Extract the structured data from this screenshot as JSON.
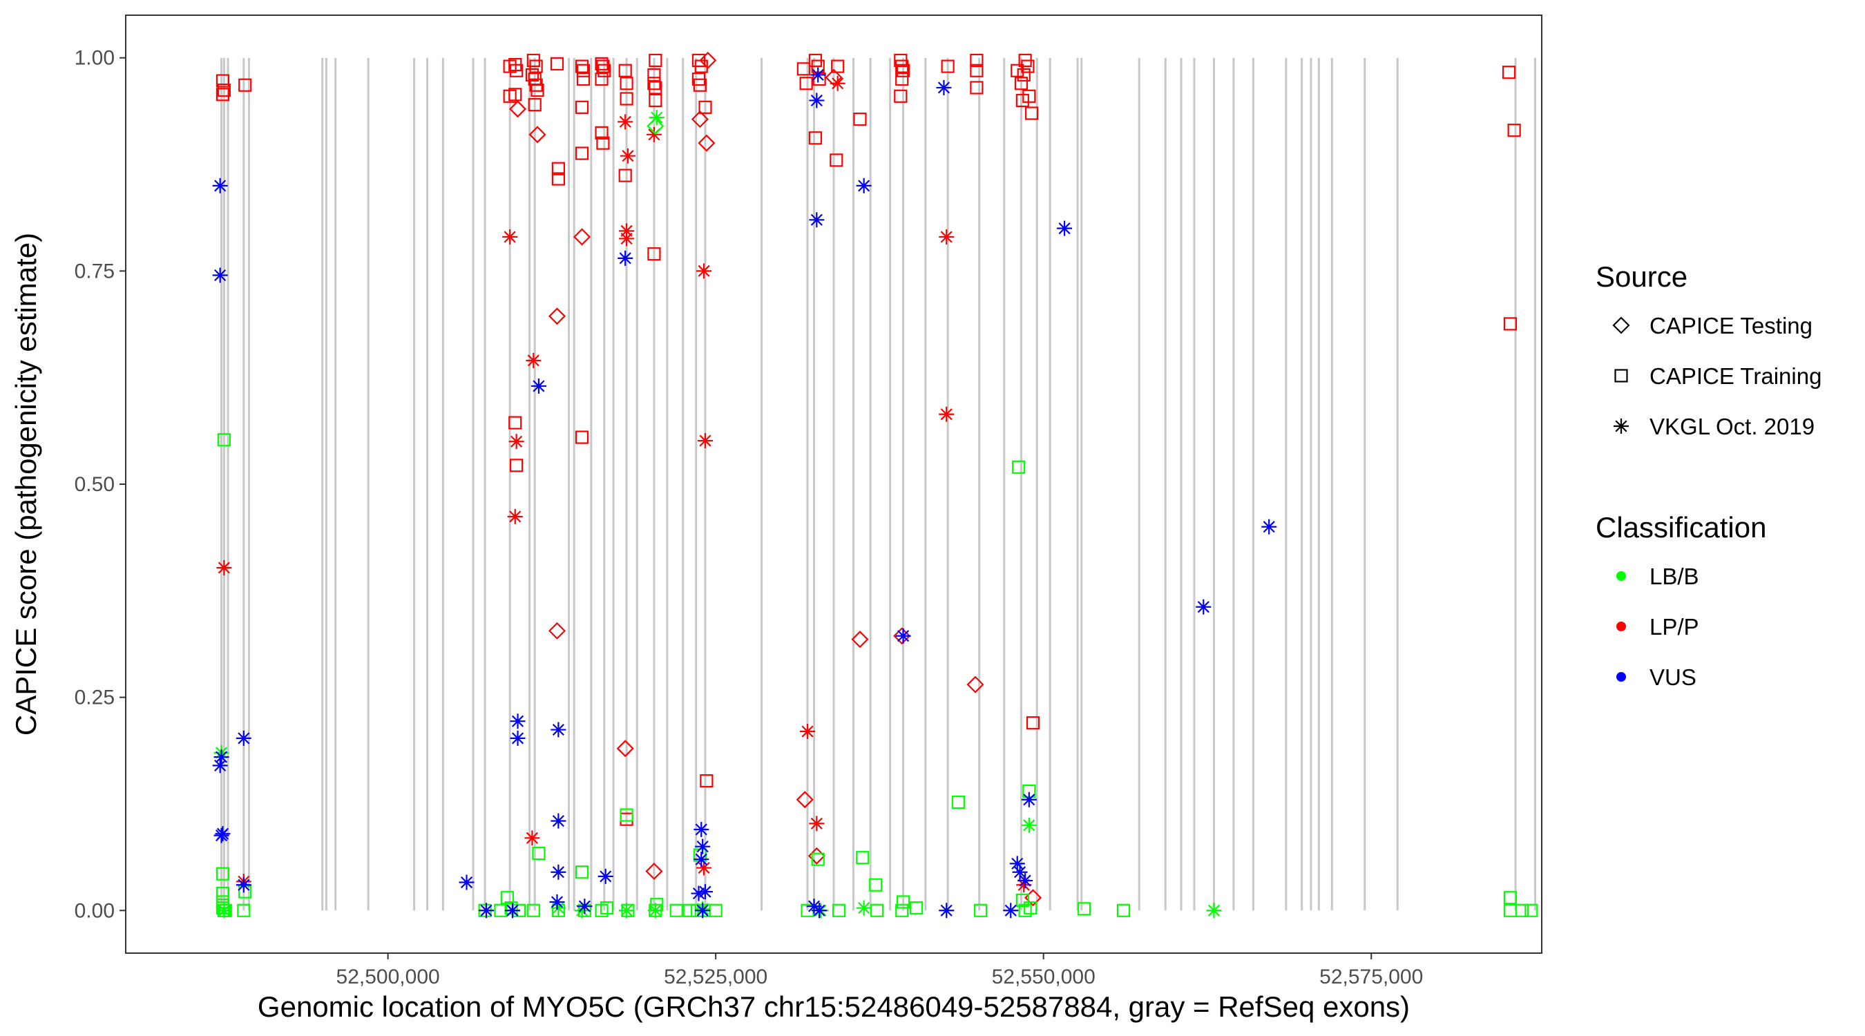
{
  "chart_data": {
    "type": "scatter",
    "xlabel": "Genomic location of MYO5C (GRCh37 chr15:52486049-52587884, gray = RefSeq exons)",
    "ylabel": "CAPICE score (pathogenicity estimate)",
    "x_ticks": [
      52500000,
      52525000,
      52550000,
      52575000
    ],
    "x_tick_labels": [
      "52,500,000",
      "52,525,000",
      "52,550,000",
      "52,575,000"
    ],
    "y_ticks": [
      0,
      0.25,
      0.5,
      0.75,
      1
    ],
    "y_tick_labels": [
      "0.00",
      "0.25",
      "0.50",
      "0.75",
      "1.00"
    ],
    "xlim": [
      52480000,
      52588000
    ],
    "ylim": [
      -0.05,
      1.05
    ],
    "grid": false,
    "legend_position": "right",
    "exons": [
      52487300,
      52487500,
      52487800,
      52489000,
      52489400,
      52495000,
      52495300,
      52496000,
      52498500,
      52502000,
      52503000,
      52504200,
      52506500,
      52507400,
      52509300,
      52510800,
      52511200,
      52513800,
      52514200,
      52515500,
      52516500,
      52517200,
      52518200,
      52519000,
      52520300,
      52521300,
      52522500,
      52523500,
      52524200,
      52528500,
      52532000,
      52532500,
      52534000,
      52535500,
      52536800,
      52538300,
      52539300,
      52541000,
      52542700,
      52545100,
      52547000,
      52548300,
      52549500,
      52550500,
      52552600,
      52552900,
      52557300,
      52559300,
      52560500,
      52561500,
      52563000,
      52564500,
      52566000,
      52568500,
      52569700,
      52570400,
      52571000,
      52572000,
      52574500,
      52577000,
      52586000,
      52587500
    ],
    "legend": {
      "source_title": "Source",
      "classification_title": "Classification",
      "sources": [
        {
          "key": "testing",
          "label": "CAPICE Testing",
          "shape": "diamond"
        },
        {
          "key": "training",
          "label": "CAPICE Training",
          "shape": "square"
        },
        {
          "key": "vkgl",
          "label": "VKGL Oct. 2019",
          "shape": "asterisk"
        }
      ],
      "classes": [
        {
          "key": "LB/B",
          "label": "LB/B",
          "color": "#00ff00"
        },
        {
          "key": "LP/P",
          "label": "LP/P",
          "color": "#ff0000"
        },
        {
          "key": "VUS",
          "label": "VUS",
          "color": "#0000ff"
        }
      ]
    },
    "series": [
      {
        "class": "LP/P",
        "source": "training",
        "points": [
          [
            52487400,
            0.973
          ],
          [
            52487400,
            0.957
          ],
          [
            52487500,
            0.962
          ],
          [
            52489100,
            0.968
          ],
          [
            52509300,
            0.99
          ],
          [
            52509300,
            0.955
          ],
          [
            52509700,
            0.992
          ],
          [
            52509800,
            0.985
          ],
          [
            52509700,
            0.957
          ],
          [
            52509700,
            0.572
          ],
          [
            52509800,
            0.522
          ],
          [
            52511100,
            0.997
          ],
          [
            52511300,
            0.99
          ],
          [
            52511000,
            0.98
          ],
          [
            52511200,
            0.975
          ],
          [
            52511300,
            0.968
          ],
          [
            52511400,
            0.962
          ],
          [
            52511200,
            0.945
          ],
          [
            52512900,
            0.993
          ],
          [
            52513000,
            0.87
          ],
          [
            52513000,
            0.858
          ],
          [
            52514800,
            0.99
          ],
          [
            52514900,
            0.985
          ],
          [
            52514900,
            0.975
          ],
          [
            52514800,
            0.942
          ],
          [
            52514800,
            0.888
          ],
          [
            52514800,
            0.555
          ],
          [
            52516300,
            0.993
          ],
          [
            52516400,
            0.99
          ],
          [
            52516500,
            0.985
          ],
          [
            52516300,
            0.975
          ],
          [
            52516300,
            0.912
          ],
          [
            52516400,
            0.9
          ],
          [
            52518100,
            0.985
          ],
          [
            52518200,
            0.97
          ],
          [
            52518200,
            0.952
          ],
          [
            52518100,
            0.862
          ],
          [
            52518200,
            0.107
          ],
          [
            52520400,
            0.997
          ],
          [
            52520300,
            0.98
          ],
          [
            52520300,
            0.97
          ],
          [
            52520400,
            0.965
          ],
          [
            52520400,
            0.95
          ],
          [
            52520300,
            0.77
          ],
          [
            52523700,
            0.997
          ],
          [
            52523900,
            0.99
          ],
          [
            52523700,
            0.975
          ],
          [
            52523800,
            0.968
          ],
          [
            52524200,
            0.942
          ],
          [
            52524300,
            0.152
          ],
          [
            52531700,
            0.987
          ],
          [
            52531900,
            0.97
          ],
          [
            52532600,
            0.997
          ],
          [
            52532800,
            0.99
          ],
          [
            52532900,
            0.975
          ],
          [
            52532600,
            0.906
          ],
          [
            52534300,
            0.99
          ],
          [
            52534200,
            0.88
          ],
          [
            52536000,
            0.928
          ],
          [
            52539100,
            0.997
          ],
          [
            52539200,
            0.99
          ],
          [
            52539300,
            0.985
          ],
          [
            52539200,
            0.975
          ],
          [
            52539100,
            0.955
          ],
          [
            52542700,
            0.99
          ],
          [
            52544900,
            0.997
          ],
          [
            52544900,
            0.985
          ],
          [
            52544900,
            0.965
          ],
          [
            52548000,
            0.985
          ],
          [
            52548600,
            0.997
          ],
          [
            52548800,
            0.99
          ],
          [
            52548500,
            0.98
          ],
          [
            52548300,
            0.97
          ],
          [
            52548900,
            0.955
          ],
          [
            52548400,
            0.95
          ],
          [
            52549100,
            0.935
          ],
          [
            52549200,
            0.22
          ],
          [
            52585500,
            0.983
          ],
          [
            52585900,
            0.915
          ],
          [
            52585600,
            0.688
          ]
        ]
      },
      {
        "class": "LP/P",
        "source": "testing",
        "points": [
          [
            52509900,
            0.94
          ],
          [
            52511400,
            0.91
          ],
          [
            52512900,
            0.697
          ],
          [
            52512900,
            0.328
          ],
          [
            52514800,
            0.79
          ],
          [
            52518100,
            0.19
          ],
          [
            52520300,
            0.046
          ],
          [
            52523800,
            0.928
          ],
          [
            52524300,
            0.9
          ],
          [
            52524400,
            0.997
          ],
          [
            52531800,
            0.13
          ],
          [
            52532700,
            0.064
          ],
          [
            52534000,
            0.977
          ],
          [
            52536000,
            0.318
          ],
          [
            52539200,
            0.322
          ],
          [
            52544800,
            0.265
          ],
          [
            52549200,
            0.015
          ]
        ]
      },
      {
        "class": "LP/P",
        "source": "vkgl",
        "points": [
          [
            52487500,
            0.402
          ],
          [
            52489000,
            0.034
          ],
          [
            52509300,
            0.79
          ],
          [
            52509800,
            0.55
          ],
          [
            52509700,
            0.462
          ],
          [
            52511100,
            0.645
          ],
          [
            52511000,
            0.085
          ],
          [
            52518100,
            0.925
          ],
          [
            52518300,
            0.885
          ],
          [
            52518200,
            0.797
          ],
          [
            52518200,
            0.788
          ],
          [
            52520300,
            0.91
          ],
          [
            52524100,
            0.75
          ],
          [
            52524200,
            0.551
          ],
          [
            52524100,
            0.05
          ],
          [
            52532000,
            0.21
          ],
          [
            52532700,
            0.102
          ],
          [
            52534300,
            0.97
          ],
          [
            52542600,
            0.79
          ],
          [
            52542600,
            0.582
          ],
          [
            52548500,
            0.03
          ]
        ]
      },
      {
        "class": "LB/B",
        "source": "training",
        "points": [
          [
            52487400,
            0.043
          ],
          [
            52487400,
            0.02
          ],
          [
            52487400,
            0.01
          ],
          [
            52487400,
            0.003
          ],
          [
            52487500,
            0.0
          ],
          [
            52487600,
            0.0
          ],
          [
            52487500,
            0.552
          ],
          [
            52489000,
            0.0
          ],
          [
            52489100,
            0.022
          ],
          [
            52507400,
            0.0
          ],
          [
            52508600,
            0.0
          ],
          [
            52509100,
            0.015
          ],
          [
            52509400,
            0.003
          ],
          [
            52510000,
            0.0
          ],
          [
            52511100,
            0.0
          ],
          [
            52511500,
            0.067
          ],
          [
            52513000,
            0.0
          ],
          [
            52514800,
            0.045
          ],
          [
            52515000,
            0.0
          ],
          [
            52516300,
            0.0
          ],
          [
            52516700,
            0.003
          ],
          [
            52518200,
            0.112
          ],
          [
            52518300,
            0.0
          ],
          [
            52520400,
            0.0
          ],
          [
            52520500,
            0.007
          ],
          [
            52522000,
            0.0
          ],
          [
            52523000,
            0.0
          ],
          [
            52523600,
            0.0
          ],
          [
            52523800,
            0.065
          ],
          [
            52524100,
            0.0
          ],
          [
            52525000,
            0.0
          ],
          [
            52532000,
            0.0
          ],
          [
            52532800,
            0.06
          ],
          [
            52534400,
            0.0
          ],
          [
            52536200,
            0.062
          ],
          [
            52537200,
            0.03
          ],
          [
            52537300,
            0.0
          ],
          [
            52539200,
            0.0
          ],
          [
            52539300,
            0.01
          ],
          [
            52540300,
            0.003
          ],
          [
            52543500,
            0.127
          ],
          [
            52545200,
            0.0
          ],
          [
            52548100,
            0.52
          ],
          [
            52548900,
            0.14
          ],
          [
            52548400,
            0.012
          ],
          [
            52548600,
            0.0
          ],
          [
            52549000,
            0.003
          ],
          [
            52553100,
            0.002
          ],
          [
            52556100,
            0.0
          ],
          [
            52585600,
            0.015
          ],
          [
            52585600,
            0.0
          ],
          [
            52586500,
            0.0
          ],
          [
            52587200,
            0.0
          ]
        ]
      },
      {
        "class": "LB/B",
        "source": "testing",
        "points": [
          [
            52520400,
            0.92
          ]
        ]
      },
      {
        "class": "LB/B",
        "source": "vkgl",
        "points": [
          [
            52487300,
            0.185
          ],
          [
            52487500,
            0.0
          ],
          [
            52509500,
            0.0
          ],
          [
            52513000,
            0.003
          ],
          [
            52514800,
            0.0
          ],
          [
            52518200,
            0.0
          ],
          [
            52520400,
            0.0
          ],
          [
            52520500,
            0.93
          ],
          [
            52524000,
            0.002
          ],
          [
            52533000,
            0.0
          ],
          [
            52536300,
            0.003
          ],
          [
            52548900,
            0.1
          ],
          [
            52563000,
            0.0
          ]
        ]
      },
      {
        "class": "VUS",
        "source": "vkgl",
        "points": [
          [
            52487200,
            0.85
          ],
          [
            52487200,
            0.745
          ],
          [
            52487300,
            0.18
          ],
          [
            52487200,
            0.17
          ],
          [
            52487400,
            0.09
          ],
          [
            52487300,
            0.088
          ],
          [
            52489000,
            0.202
          ],
          [
            52489000,
            0.03
          ],
          [
            52506000,
            0.033
          ],
          [
            52507500,
            0.0
          ],
          [
            52509500,
            0.0
          ],
          [
            52509900,
            0.222
          ],
          [
            52509900,
            0.202
          ],
          [
            52511500,
            0.615
          ],
          [
            52513000,
            0.212
          ],
          [
            52513000,
            0.105
          ],
          [
            52513000,
            0.045
          ],
          [
            52512900,
            0.01
          ],
          [
            52515000,
            0.005
          ],
          [
            52516600,
            0.04
          ],
          [
            52518100,
            0.765
          ],
          [
            52523900,
            0.095
          ],
          [
            52524000,
            0.075
          ],
          [
            52523900,
            0.06
          ],
          [
            52524200,
            0.022
          ],
          [
            52523700,
            0.02
          ],
          [
            52524000,
            0.0
          ],
          [
            52532800,
            0.98
          ],
          [
            52532700,
            0.95
          ],
          [
            52532700,
            0.81
          ],
          [
            52532500,
            0.005
          ],
          [
            52532900,
            0.0
          ],
          [
            52536300,
            0.85
          ],
          [
            52539300,
            0.322
          ],
          [
            52542400,
            0.965
          ],
          [
            52542600,
            0.0
          ],
          [
            52547500,
            0.0
          ],
          [
            52548000,
            0.055
          ],
          [
            52548200,
            0.045
          ],
          [
            52548600,
            0.035
          ],
          [
            52548900,
            0.13
          ],
          [
            52551600,
            0.8
          ],
          [
            52562200,
            0.356
          ],
          [
            52567200,
            0.45
          ]
        ]
      }
    ]
  }
}
